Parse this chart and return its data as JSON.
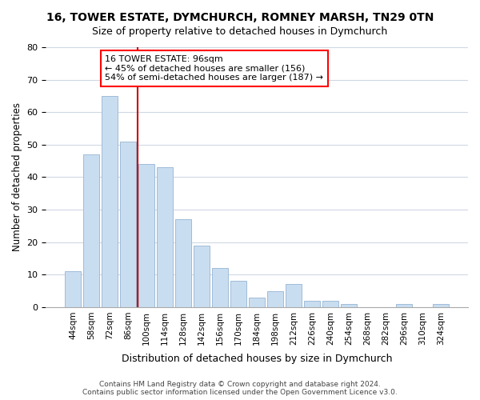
{
  "title": "16, TOWER ESTATE, DYMCHURCH, ROMNEY MARSH, TN29 0TN",
  "subtitle": "Size of property relative to detached houses in Dymchurch",
  "xlabel": "Distribution of detached houses by size in Dymchurch",
  "ylabel": "Number of detached properties",
  "bar_labels": [
    "44sqm",
    "58sqm",
    "72sqm",
    "86sqm",
    "100sqm",
    "114sqm",
    "128sqm",
    "142sqm",
    "156sqm",
    "170sqm",
    "184sqm",
    "198sqm",
    "212sqm",
    "226sqm",
    "240sqm",
    "254sqm",
    "268sqm",
    "282sqm",
    "296sqm",
    "310sqm",
    "324sqm"
  ],
  "bar_values": [
    11,
    47,
    65,
    51,
    44,
    43,
    27,
    19,
    12,
    8,
    3,
    5,
    7,
    2,
    2,
    1,
    0,
    0,
    1,
    0,
    1
  ],
  "bar_color": "#c9ddf0",
  "bar_edge_color": "#a0bcd8",
  "vline_x": 3.5,
  "vline_color": "#cc0000",
  "ylim": [
    0,
    80
  ],
  "yticks": [
    0,
    10,
    20,
    30,
    40,
    50,
    60,
    70,
    80
  ],
  "annotation_line1": "16 TOWER ESTATE: 96sqm",
  "annotation_line2": "← 45% of detached houses are smaller (156)",
  "annotation_line3": "54% of semi-detached houses are larger (187) →",
  "footer_line1": "Contains HM Land Registry data © Crown copyright and database right 2024.",
  "footer_line2": "Contains public sector information licensed under the Open Government Licence v3.0.",
  "background_color": "#ffffff",
  "grid_color": "#d0d8e4"
}
